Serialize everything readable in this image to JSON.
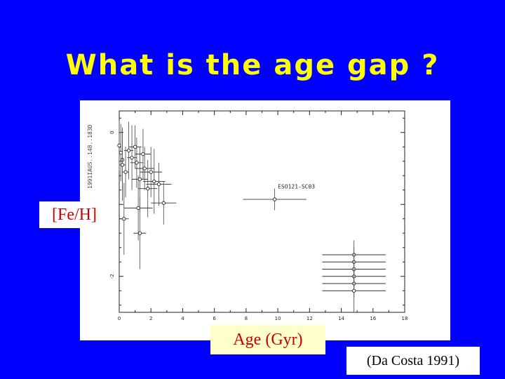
{
  "slide": {
    "title": "What is the age gap ?",
    "ylabel_box": "[Fe/H]",
    "xlabel_box": "Age (Gyr)",
    "citation": "(Da Costa 1991)",
    "colors": {
      "background": "#0000ff",
      "title": "#ffff00",
      "label_text": "#cc0000",
      "xlabel_box_bg": "#ffffcc"
    }
  },
  "chart_data": {
    "type": "scatter",
    "title": "",
    "xlabel": "",
    "ylabel": "",
    "xlim": [
      0,
      18
    ],
    "ylim": [
      -2.5,
      0.3
    ],
    "x_ticks": [
      "0",
      "2",
      "4",
      "6",
      "8",
      "10",
      "12",
      "14",
      "16",
      "18"
    ],
    "y_ticks": [
      "0",
      "-2"
    ],
    "side_stamp": "1991IAUS..148..183D",
    "annotation": "ESO121-SC03",
    "points": [
      {
        "x": 0.0,
        "y": -0.18,
        "xerr": 0.1,
        "yerr": 0.35
      },
      {
        "x": 0.1,
        "y": -0.28,
        "xerr": 0.1,
        "yerr": 0.4
      },
      {
        "x": 0.2,
        "y": -0.38,
        "xerr": 0.1,
        "yerr": 0.45
      },
      {
        "x": 0.2,
        "y": -0.45,
        "xerr": 0.2,
        "yerr": 0.5
      },
      {
        "x": 0.4,
        "y": -0.55,
        "xerr": 0.2,
        "yerr": 0.35
      },
      {
        "x": 0.6,
        "y": -0.25,
        "xerr": 0.3,
        "yerr": 0.4
      },
      {
        "x": 0.8,
        "y": -0.35,
        "xerr": 0.3,
        "yerr": 0.45
      },
      {
        "x": 1.0,
        "y": -0.2,
        "xerr": 0.4,
        "yerr": 0.3
      },
      {
        "x": 1.1,
        "y": -0.42,
        "xerr": 0.4,
        "yerr": 0.35
      },
      {
        "x": 1.3,
        "y": -0.65,
        "xerr": 0.5,
        "yerr": 0.45
      },
      {
        "x": 1.5,
        "y": -0.3,
        "xerr": 0.5,
        "yerr": 0.35
      },
      {
        "x": 1.6,
        "y": -0.5,
        "xerr": 0.6,
        "yerr": 0.3
      },
      {
        "x": 1.8,
        "y": -0.78,
        "xerr": 0.6,
        "yerr": 0.4
      },
      {
        "x": 2.0,
        "y": -0.55,
        "xerr": 0.7,
        "yerr": 0.35
      },
      {
        "x": 2.2,
        "y": -0.68,
        "xerr": 0.7,
        "yerr": 0.45
      },
      {
        "x": 2.5,
        "y": -0.72,
        "xerr": 0.8,
        "yerr": 0.3
      },
      {
        "x": 2.8,
        "y": -0.98,
        "xerr": 0.8,
        "yerr": 0.3
      },
      {
        "x": 1.2,
        "y": -1.05,
        "xerr": 0.9,
        "yerr": 0.45
      },
      {
        "x": 0.3,
        "y": -1.2,
        "xerr": 0.3,
        "yerr": 0.5
      },
      {
        "x": 1.3,
        "y": -1.4,
        "xerr": 0.4,
        "yerr": 0.5
      },
      {
        "x": 9.8,
        "y": -0.93,
        "xerr": 2.0,
        "yerr": 0.15
      },
      {
        "x": 14.8,
        "y": -1.7,
        "xerr": 2.0,
        "yerr": 0.2
      },
      {
        "x": 14.8,
        "y": -1.8,
        "xerr": 2.0,
        "yerr": 0.2
      },
      {
        "x": 14.8,
        "y": -1.9,
        "xerr": 2.0,
        "yerr": 0.2
      },
      {
        "x": 14.8,
        "y": -2.0,
        "xerr": 2.0,
        "yerr": 0.2
      },
      {
        "x": 14.8,
        "y": -2.1,
        "xerr": 2.0,
        "yerr": 0.2
      },
      {
        "x": 14.8,
        "y": -2.2,
        "xerr": 2.0,
        "yerr": 0.3
      }
    ]
  }
}
